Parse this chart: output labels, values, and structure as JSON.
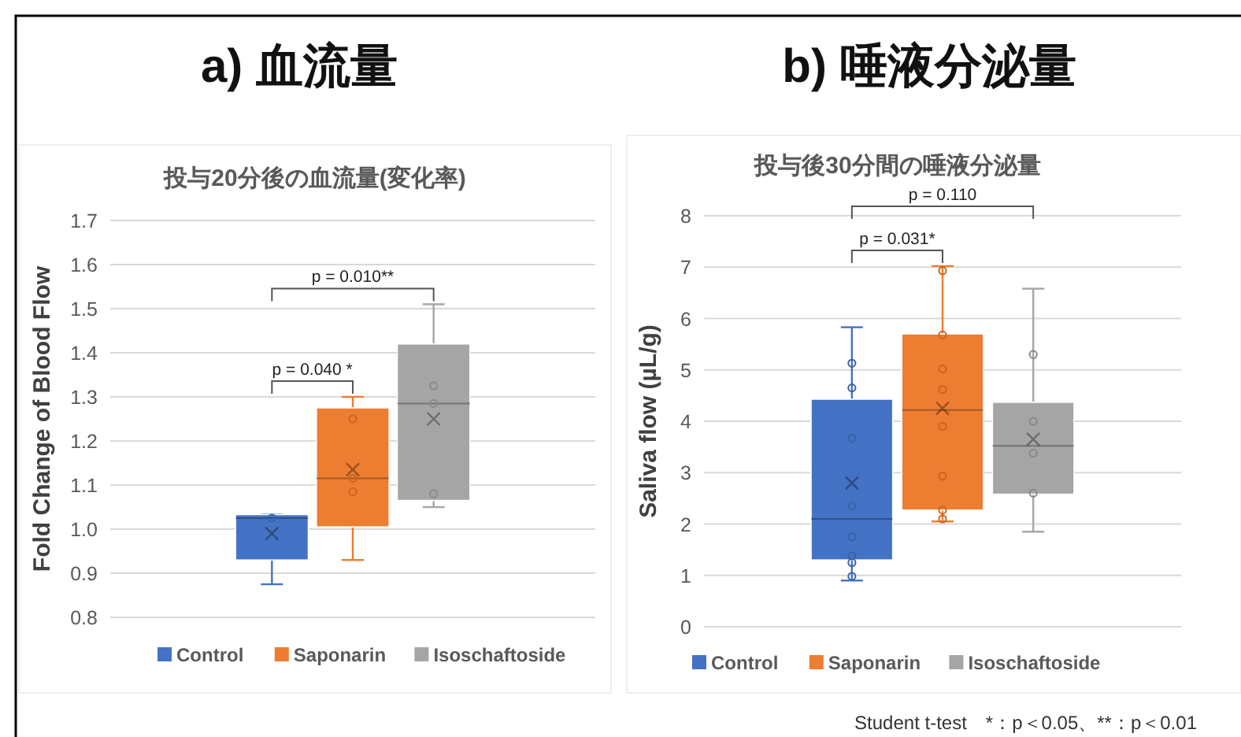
{
  "chart_data": [
    {
      "type": "box",
      "title": "a) 血流量",
      "subtitle": "投与20分後の血流量(変化率)",
      "ylabel": "Fold Change of Blood Flow",
      "categories": [
        null
      ],
      "tick_labels": "y",
      "legend": "bottom",
      "grid": "y",
      "ylim": [
        0.8,
        1.7
      ],
      "yticks": [
        {
          "value": 0.8,
          "label": "0.8"
        },
        {
          "value": 0.9,
          "label": "0.9"
        },
        {
          "value": 1.0,
          "label": "1.0"
        },
        {
          "value": 1.1,
          "label": "1.1"
        },
        {
          "value": 1.2,
          "label": "1.2"
        },
        {
          "value": 1.3,
          "label": "1.3"
        },
        {
          "value": 1.4,
          "label": "1.4"
        },
        {
          "value": 1.5,
          "label": "1.5"
        },
        {
          "value": 1.6,
          "label": "1.6"
        },
        {
          "value": 1.7,
          "label": "1.7"
        }
      ],
      "series": [
        {
          "name": "Control",
          "color": "#4472c4",
          "boxes": [
            {
              "low": 0.875,
              "q1": 0.93,
              "median": 1.025,
              "q3": 1.033,
              "high": 1.033,
              "mean": 0.99
            }
          ]
        },
        {
          "name": "Saponarin",
          "color": "#ed7d31",
          "boxes": [
            {
              "low": 0.93,
              "q1": 1.005,
              "median": 1.115,
              "q3": 1.275,
              "high": 1.3,
              "mean": 1.135
            }
          ]
        },
        {
          "name": "Isoschaftoside",
          "color": "#a5a5a5",
          "boxes": [
            {
              "low": 1.05,
              "q1": 1.065,
              "median": 1.285,
              "q3": 1.42,
              "high": 1.51,
              "mean": 1.25
            }
          ]
        },
        {
          "type": "scatter",
          "color": "#3a62a8",
          "x": [
            null
          ],
          "values": [
            1.025
          ]
        },
        {
          "type": "scatter",
          "color": "#c9651f",
          "x": [
            null,
            null,
            null
          ],
          "values": [
            1.25,
            1.115,
            1.085
          ]
        },
        {
          "type": "scatter",
          "color": "#8a8a8a",
          "x": [
            null,
            null,
            null
          ],
          "values": [
            1.325,
            1.285,
            1.08
          ]
        }
      ],
      "annotations": [
        "p = 0.040 *",
        "p = 0.010**"
      ]
    },
    {
      "type": "box",
      "title": "b) 唾液分泌量",
      "subtitle": "投与後30分間の唾液分泌量",
      "ylabel": "Saliva flow (µL/g)",
      "categories": [
        null
      ],
      "tick_labels": "y",
      "legend": "bottom",
      "grid": "y",
      "ylim": [
        0,
        8
      ],
      "yticks": [
        0,
        1,
        2,
        3,
        4,
        5,
        6,
        7,
        8
      ],
      "series": [
        {
          "name": "Control",
          "color": "#4472c4",
          "boxes": [
            {
              "low": 0.9,
              "q1": 1.3,
              "median": 2.1,
              "q3": 4.43,
              "high": 5.83,
              "mean": 2.8
            }
          ]
        },
        {
          "name": "Saponarin",
          "color": "#ed7d31",
          "boxes": [
            {
              "low": 2.05,
              "q1": 2.27,
              "median": 4.22,
              "q3": 5.7,
              "high": 7.02,
              "mean": 4.25
            }
          ]
        },
        {
          "name": "Isoschaftoside",
          "color": "#a5a5a5",
          "boxes": [
            {
              "low": 1.85,
              "q1": 2.58,
              "median": 3.52,
              "q3": 4.37,
              "high": 6.58,
              "mean": 3.65
            }
          ]
        },
        {
          "type": "scatter",
          "color": "#3a62a8",
          "x": [
            null,
            null,
            null,
            null,
            null,
            null,
            null,
            null
          ],
          "values": [
            5.13,
            4.65,
            3.67,
            2.35,
            1.75,
            1.38,
            1.25,
            0.98
          ]
        },
        {
          "type": "scatter",
          "color": "#c9651f",
          "x": [
            null,
            null,
            null,
            null,
            null,
            null,
            null,
            null
          ],
          "values": [
            6.93,
            5.68,
            5.02,
            4.62,
            3.9,
            2.93,
            2.27,
            2.1
          ]
        },
        {
          "type": "scatter",
          "color": "#8a8a8a",
          "x": [
            null,
            null,
            null,
            null
          ],
          "values": [
            5.3,
            4.0,
            3.38,
            2.6
          ]
        }
      ],
      "annotations": [
        "p = 0.031*",
        "p = 0.110",
        "Student t-test　*：p＜0.05、**：p＜0.01"
      ]
    }
  ]
}
